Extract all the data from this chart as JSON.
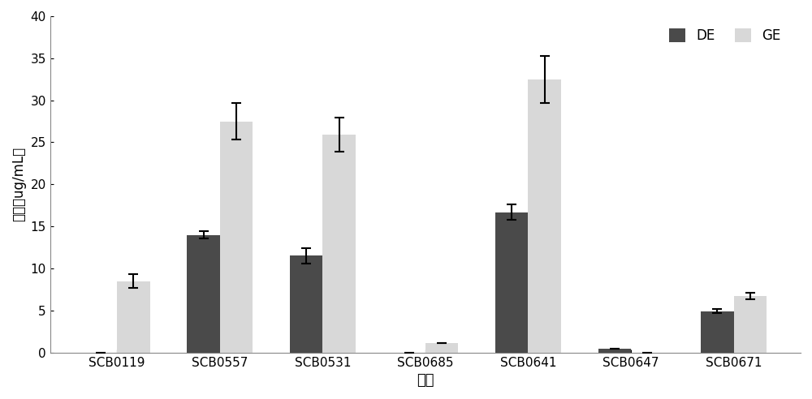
{
  "categories": [
    "SCB0119",
    "SCB0557",
    "SCB0531",
    "SCB0685",
    "SCB0641",
    "SCB0647",
    "SCB0671"
  ],
  "DE_values": [
    0,
    14.0,
    11.5,
    0,
    16.7,
    0.5,
    4.9
  ],
  "GE_values": [
    8.5,
    27.5,
    25.9,
    1.1,
    32.5,
    0,
    6.7
  ],
  "DE_errors": [
    0,
    0.4,
    0.9,
    0,
    0.9,
    0,
    0.25
  ],
  "GE_errors": [
    0.8,
    2.2,
    2.0,
    0,
    2.8,
    0,
    0.4
  ],
  "DE_color": "#4a4a4a",
  "GE_color": "#d8d8d8",
  "ylabel": "含量（ug/mL）",
  "xlabel": "菌株",
  "ylim": [
    0,
    40
  ],
  "yticks": [
    0,
    5,
    10,
    15,
    20,
    25,
    30,
    35,
    40
  ],
  "legend_DE": "DE",
  "legend_GE": "GE",
  "bar_width": 0.32,
  "figure_bg": "#ffffff",
  "axes_bg": "#ffffff"
}
